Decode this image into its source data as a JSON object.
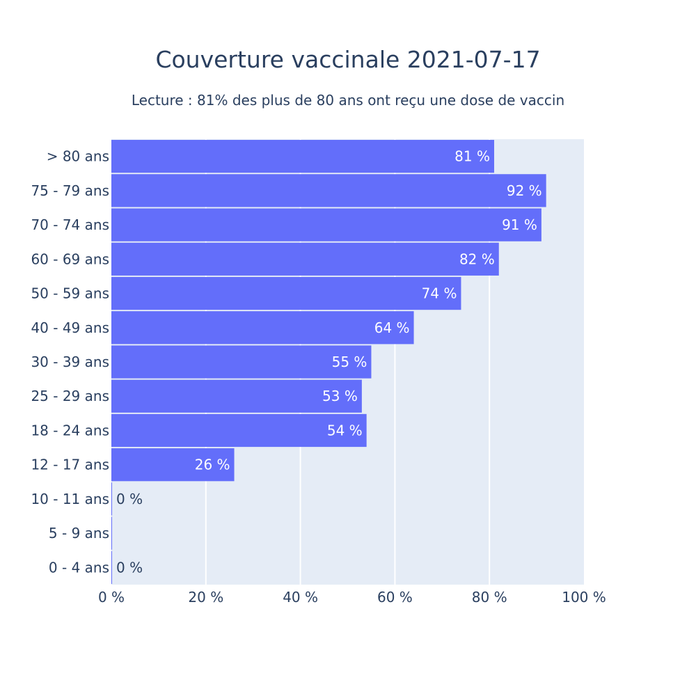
{
  "chart_data": {
    "type": "bar",
    "orientation": "horizontal",
    "title": "Couverture vaccinale 2021-07-17",
    "subtitle": "Lecture : 81% des plus de 80 ans ont reçu une dose de vaccin",
    "categories": [
      "> 80 ans",
      "75 - 79 ans",
      "70 - 74 ans",
      "60 - 69 ans",
      "50 - 59 ans",
      "40 - 49 ans",
      "30 - 39 ans",
      "25 - 29 ans",
      "18 - 24 ans",
      "12 - 17 ans",
      "10 - 11 ans",
      "5 - 9 ans",
      "0 - 4 ans"
    ],
    "values": [
      81,
      92,
      91,
      82,
      74,
      64,
      55,
      53,
      54,
      26,
      0,
      0,
      0
    ],
    "data_labels": [
      "81 %",
      "92 %",
      "91 %",
      "82 %",
      "74 %",
      "64 %",
      "55 %",
      "53 %",
      "54 %",
      "26 %",
      "0 %",
      "",
      "0 %"
    ],
    "xlim": [
      0,
      100
    ],
    "xticks": [
      0,
      20,
      40,
      60,
      80,
      100
    ],
    "xtick_labels": [
      "0 %",
      "20 %",
      "40 %",
      "60 %",
      "80 %",
      "100 %"
    ],
    "xlabel": "",
    "ylabel": "",
    "grid": true,
    "colors": {
      "bar": "#636efa",
      "plot_bg": "#e5ecf6",
      "grid": "#ffffff",
      "text": "#2a3f5f",
      "label_inside": "#ffffff"
    }
  }
}
